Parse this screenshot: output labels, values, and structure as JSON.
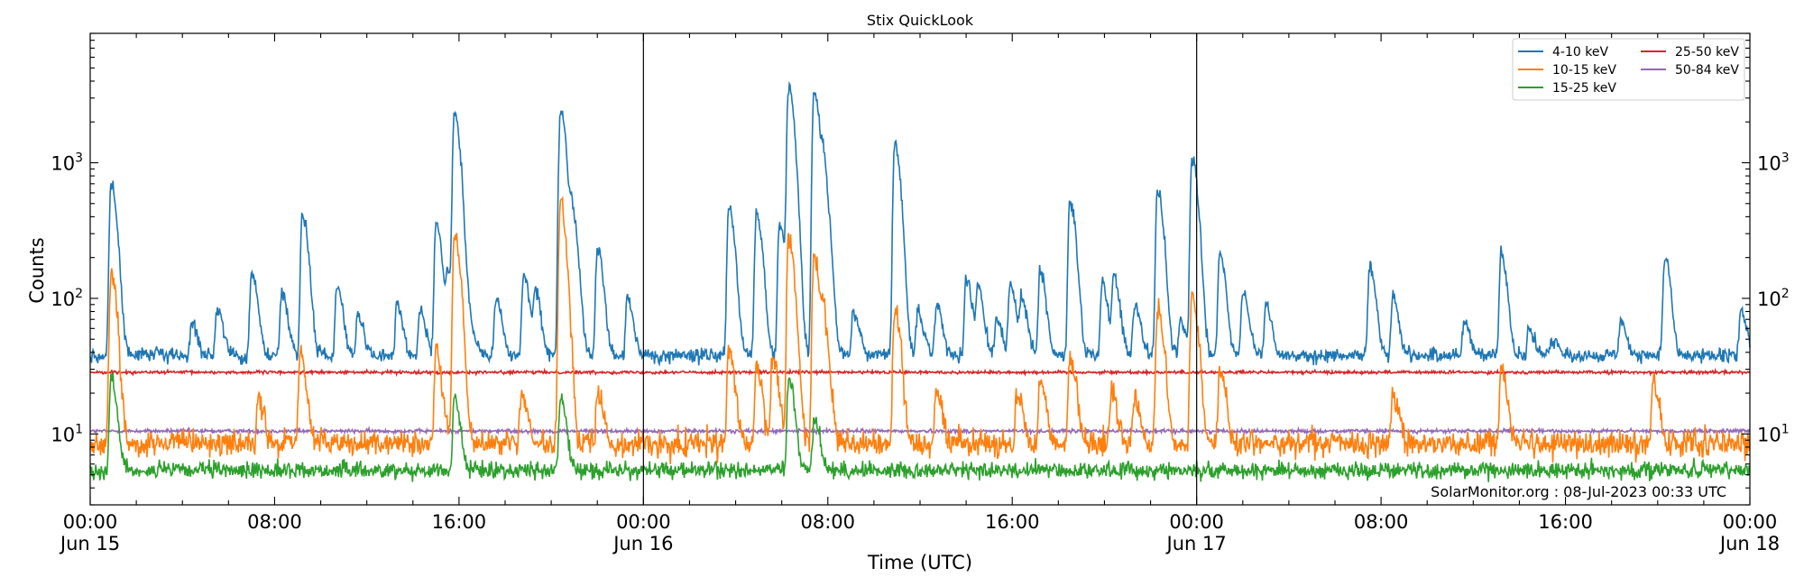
{
  "chart_data": {
    "type": "line",
    "title": "Stix QuickLook",
    "xlabel": "Time (UTC)",
    "ylabel": "Counts",
    "yscale": "log",
    "ylim": [
      3,
      9000
    ],
    "xlim_hours": [
      0,
      72
    ],
    "x_ticks": [
      {
        "hour": 0,
        "line1": "00:00",
        "line2": "Jun 15"
      },
      {
        "hour": 8,
        "line1": "08:00",
        "line2": ""
      },
      {
        "hour": 16,
        "line1": "16:00",
        "line2": ""
      },
      {
        "hour": 24,
        "line1": "00:00",
        "line2": "Jun 16"
      },
      {
        "hour": 32,
        "line1": "08:00",
        "line2": ""
      },
      {
        "hour": 40,
        "line1": "16:00",
        "line2": ""
      },
      {
        "hour": 48,
        "line1": "00:00",
        "line2": "Jun 17"
      },
      {
        "hour": 56,
        "line1": "08:00",
        "line2": ""
      },
      {
        "hour": 64,
        "line1": "16:00",
        "line2": ""
      },
      {
        "hour": 72,
        "line1": "00:00",
        "line2": "Jun 18"
      }
    ],
    "y_ticks": [
      {
        "value": 10,
        "base": "10",
        "exp": "1"
      },
      {
        "value": 100,
        "base": "10",
        "exp": "2"
      },
      {
        "value": 1000,
        "base": "10",
        "exp": "3"
      }
    ],
    "day_boundaries_hours": [
      24,
      48
    ],
    "legend_position": "top-right",
    "annotation": "SolarMonitor.org : 08-Jul-2023 00:33 UTC",
    "series": [
      {
        "name": "4-10 keV",
        "color": "#1f77b4",
        "baseline": 38,
        "noise": 0.12,
        "peaks": [
          [
            0.9,
            700
          ],
          [
            4.4,
            65
          ],
          [
            5.5,
            85
          ],
          [
            7.0,
            160
          ],
          [
            8.3,
            110
          ],
          [
            9.2,
            430
          ],
          [
            10.7,
            120
          ],
          [
            11.6,
            75
          ],
          [
            13.3,
            90
          ],
          [
            14.3,
            80
          ],
          [
            15.0,
            360
          ],
          [
            15.5,
            150
          ],
          [
            15.8,
            2300
          ],
          [
            16.4,
            70
          ],
          [
            17.6,
            100
          ],
          [
            18.8,
            150
          ],
          [
            19.3,
            110
          ],
          [
            20.4,
            2500
          ],
          [
            20.9,
            400
          ],
          [
            22.0,
            230
          ],
          [
            23.3,
            100
          ],
          [
            27.7,
            480
          ],
          [
            28.9,
            420
          ],
          [
            29.9,
            350
          ],
          [
            30.3,
            3600
          ],
          [
            31.4,
            3300
          ],
          [
            31.8,
            800
          ],
          [
            33.1,
            80
          ],
          [
            34.9,
            1300
          ],
          [
            35.9,
            80
          ],
          [
            36.7,
            90
          ],
          [
            38.0,
            140
          ],
          [
            38.5,
            120
          ],
          [
            39.3,
            70
          ],
          [
            39.9,
            130
          ],
          [
            40.4,
            100
          ],
          [
            41.2,
            160
          ],
          [
            42.5,
            520
          ],
          [
            43.9,
            130
          ],
          [
            44.4,
            140
          ],
          [
            45.3,
            90
          ],
          [
            46.3,
            650
          ],
          [
            47.3,
            70
          ],
          [
            47.8,
            1050
          ],
          [
            49.0,
            210
          ],
          [
            50.0,
            110
          ],
          [
            51.0,
            90
          ],
          [
            55.5,
            170
          ],
          [
            56.5,
            100
          ],
          [
            59.6,
            70
          ],
          [
            61.2,
            210
          ],
          [
            62.4,
            60
          ],
          [
            63.4,
            50
          ],
          [
            66.4,
            70
          ],
          [
            68.3,
            200
          ],
          [
            71.6,
            80
          ]
        ]
      },
      {
        "name": "10-15 keV",
        "color": "#ff7f0e",
        "baseline": 8.5,
        "noise": 0.22,
        "peaks": [
          [
            0.9,
            150
          ],
          [
            7.3,
            18
          ],
          [
            9.1,
            40
          ],
          [
            15.0,
            40
          ],
          [
            15.8,
            300
          ],
          [
            18.7,
            20
          ],
          [
            20.4,
            480
          ],
          [
            22.0,
            20
          ],
          [
            27.7,
            40
          ],
          [
            28.9,
            30
          ],
          [
            29.6,
            35
          ],
          [
            30.3,
            270
          ],
          [
            31.4,
            210
          ],
          [
            31.8,
            60
          ],
          [
            34.9,
            85
          ],
          [
            36.7,
            22
          ],
          [
            40.2,
            20
          ],
          [
            41.2,
            25
          ],
          [
            42.5,
            38
          ],
          [
            44.3,
            20
          ],
          [
            45.3,
            18
          ],
          [
            46.3,
            85
          ],
          [
            47.8,
            110
          ],
          [
            49.0,
            30
          ],
          [
            56.5,
            20
          ],
          [
            61.2,
            30
          ],
          [
            67.8,
            25
          ]
        ]
      },
      {
        "name": "15-25 keV",
        "color": "#2ca02c",
        "baseline": 5.4,
        "noise": 0.14,
        "peaks": [
          [
            0.9,
            25
          ],
          [
            15.8,
            18
          ],
          [
            20.4,
            18
          ],
          [
            30.3,
            25
          ],
          [
            31.4,
            13
          ]
        ]
      },
      {
        "name": "25-50 keV",
        "color": "#d62728",
        "baseline": 28.5,
        "noise": 0.025,
        "peaks": []
      },
      {
        "name": "50-84 keV",
        "color": "#9467bd",
        "baseline": 10.5,
        "noise": 0.03,
        "peaks": []
      }
    ]
  }
}
